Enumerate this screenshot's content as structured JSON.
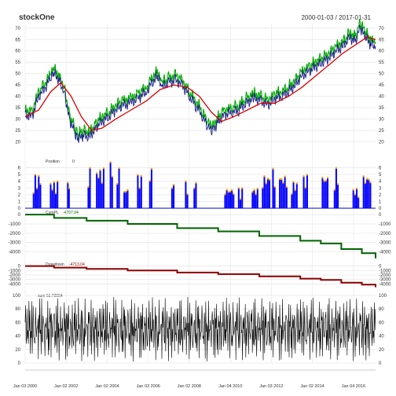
{
  "chart_data": {
    "type": "line",
    "title": "stockOne",
    "date_range": "2000-01-03 / 2017-01-31",
    "x_tick_labels": [
      "Jan 03 2000",
      "Jan 02 2002",
      "Jan 02 2004",
      "Jan 03 2006",
      "Jan 02 2008",
      "Jan 04 2010",
      "Jan 03 2012",
      "Jan 02 2014",
      "Jan 04 2016"
    ],
    "x_tick_dates": [
      "2000-01-03",
      "2002-01-02",
      "2004-01-02",
      "2006-01-03",
      "2008-01-02",
      "2010-01-04",
      "2012-01-03",
      "2014-01-02",
      "2016-01-04"
    ],
    "x_range": [
      "2000-01-03",
      "2017-01-31"
    ],
    "grid": true,
    "panels": [
      {
        "name": "price",
        "ylim": [
          15,
          72
        ],
        "y_ticks": [
          20,
          25,
          30,
          35,
          40,
          45,
          50,
          55,
          60,
          65,
          70
        ],
        "price_points": [
          [
            "2000-01-03",
            32
          ],
          [
            "2000-05-01",
            31
          ],
          [
            "2000-09-01",
            40
          ],
          [
            "2001-01-01",
            44
          ],
          [
            "2001-04-01",
            48
          ],
          [
            "2001-06-01",
            50
          ],
          [
            "2001-09-01",
            47
          ],
          [
            "2001-12-01",
            42
          ],
          [
            "2002-03-01",
            30
          ],
          [
            "2002-06-01",
            24
          ],
          [
            "2002-08-01",
            21
          ],
          [
            "2002-11-01",
            23
          ],
          [
            "2003-03-01",
            22
          ],
          [
            "2003-06-01",
            26
          ],
          [
            "2003-10-01",
            29
          ],
          [
            "2004-02-01",
            31
          ],
          [
            "2004-06-01",
            34
          ],
          [
            "2004-10-01",
            36
          ],
          [
            "2005-03-01",
            37
          ],
          [
            "2005-07-01",
            39
          ],
          [
            "2005-12-01",
            42
          ],
          [
            "2006-04-01",
            47
          ],
          [
            "2006-06-01",
            49
          ],
          [
            "2006-09-01",
            44
          ],
          [
            "2007-01-01",
            46
          ],
          [
            "2007-05-01",
            47
          ],
          [
            "2007-09-01",
            45
          ],
          [
            "2008-01-01",
            40
          ],
          [
            "2008-05-01",
            36
          ],
          [
            "2008-09-01",
            31
          ],
          [
            "2008-12-01",
            26
          ],
          [
            "2009-03-01",
            25
          ],
          [
            "2009-06-01",
            29
          ],
          [
            "2009-10-01",
            32
          ],
          [
            "2010-02-01",
            33
          ],
          [
            "2010-06-01",
            34
          ],
          [
            "2010-10-01",
            37
          ],
          [
            "2011-03-01",
            39
          ],
          [
            "2011-07-01",
            38
          ],
          [
            "2011-11-01",
            36
          ],
          [
            "2012-03-01",
            39
          ],
          [
            "2012-07-01",
            40
          ],
          [
            "2012-11-01",
            42
          ],
          [
            "2013-03-01",
            45
          ],
          [
            "2013-07-01",
            49
          ],
          [
            "2013-11-01",
            51
          ],
          [
            "2014-03-01",
            53
          ],
          [
            "2014-07-01",
            55
          ],
          [
            "2014-11-01",
            57
          ],
          [
            "2015-03-01",
            60
          ],
          [
            "2015-07-01",
            62
          ],
          [
            "2015-11-01",
            66
          ],
          [
            "2016-02-01",
            64
          ],
          [
            "2016-05-01",
            70
          ],
          [
            "2016-08-01",
            66
          ],
          [
            "2016-11-01",
            63
          ],
          [
            "2017-01-31",
            62
          ]
        ],
        "moving_average_points": [
          [
            "2000-01-03",
            31
          ],
          [
            "2000-09-01",
            34
          ],
          [
            "2001-04-01",
            42
          ],
          [
            "2001-10-01",
            46
          ],
          [
            "2002-04-01",
            40
          ],
          [
            "2002-10-01",
            31
          ],
          [
            "2003-04-01",
            25
          ],
          [
            "2003-10-01",
            26
          ],
          [
            "2004-06-01",
            30
          ],
          [
            "2005-03-01",
            34
          ],
          [
            "2005-12-01",
            38
          ],
          [
            "2006-08-01",
            43
          ],
          [
            "2007-04-01",
            45
          ],
          [
            "2007-12-01",
            44
          ],
          [
            "2008-07-01",
            40
          ],
          [
            "2009-02-01",
            33
          ],
          [
            "2009-08-01",
            29
          ],
          [
            "2010-03-01",
            31
          ],
          [
            "2010-11-01",
            34
          ],
          [
            "2011-07-01",
            37
          ],
          [
            "2012-03-01",
            37
          ],
          [
            "2012-11-01",
            40
          ],
          [
            "2013-07-01",
            44
          ],
          [
            "2014-03-01",
            49
          ],
          [
            "2014-11-01",
            54
          ],
          [
            "2015-07-01",
            59
          ],
          [
            "2016-03-01",
            63
          ],
          [
            "2016-09-01",
            66
          ],
          [
            "2017-01-31",
            65
          ]
        ],
        "series_colors": {
          "price": "#1a1a8a",
          "moving_average": "#dd0000",
          "band": "#00aa00",
          "marker": "#ffa500"
        }
      },
      {
        "name": "Position",
        "label": "Position",
        "label_value": "0",
        "ylim": [
          0,
          7
        ],
        "y_ticks": [
          0,
          1,
          2,
          3,
          4,
          5,
          6
        ],
        "blocks": [
          [
            "2000-06-01",
            "2000-11-01",
            5
          ],
          [
            "2001-04-01",
            "2001-09-01",
            4
          ],
          [
            "2002-02-01",
            "2002-03-15",
            4
          ],
          [
            "2003-02-01",
            "2003-04-01",
            6
          ],
          [
            "2003-07-01",
            "2003-12-01",
            6
          ],
          [
            "2004-03-01",
            "2004-05-01",
            7
          ],
          [
            "2004-07-01",
            "2004-09-01",
            6
          ],
          [
            "2004-11-01",
            "2005-02-01",
            3
          ],
          [
            "2005-07-01",
            "2005-10-01",
            5
          ],
          [
            "2006-02-01",
            "2006-04-01",
            6
          ],
          [
            "2007-03-01",
            "2007-05-01",
            4
          ],
          [
            "2007-11-01",
            "2008-01-01",
            4
          ],
          [
            "2008-04-01",
            "2008-06-01",
            4
          ],
          [
            "2009-10-01",
            "2010-04-01",
            3
          ],
          [
            "2010-06-01",
            "2010-09-01",
            3
          ],
          [
            "2011-02-01",
            "2011-06-01",
            3
          ],
          [
            "2011-08-01",
            "2012-01-01",
            5
          ],
          [
            "2012-02-01",
            "2012-04-01",
            6
          ],
          [
            "2012-06-01",
            "2012-11-01",
            5
          ],
          [
            "2013-01-01",
            "2013-05-01",
            4
          ],
          [
            "2013-08-01",
            "2013-11-01",
            5
          ],
          [
            "2014-07-01",
            "2014-11-01",
            5
          ],
          [
            "2015-02-01",
            "2015-05-01",
            6
          ],
          [
            "2016-01-01",
            "2016-05-01",
            3
          ],
          [
            "2016-07-01",
            "2016-12-01",
            5
          ]
        ],
        "color": "#0000ff",
        "marker_color": "#ffa500"
      },
      {
        "name": "CumPL",
        "label": "CumPL",
        "label_value": "-4707.04",
        "ylim": [
          -4800,
          100
        ],
        "y_ticks": [
          0,
          -1000,
          -2000,
          -3000,
          -4000
        ],
        "points": [
          [
            "2000-01-03",
            0
          ],
          [
            "2001-06-01",
            -350
          ],
          [
            "2003-01-01",
            -650
          ],
          [
            "2005-01-01",
            -1000
          ],
          [
            "2007-06-01",
            -1450
          ],
          [
            "2009-06-01",
            -1800
          ],
          [
            "2011-06-01",
            -2300
          ],
          [
            "2013-06-01",
            -2800
          ],
          [
            "2014-06-01",
            -3100
          ],
          [
            "2015-06-01",
            -3700
          ],
          [
            "2016-06-01",
            -4150
          ],
          [
            "2017-01-31",
            -4707
          ]
        ],
        "color": "#006400"
      },
      {
        "name": "Drawdown",
        "label": "Drawdown",
        "label_value": "-4713.04",
        "ylim": [
          -4800,
          100
        ],
        "y_ticks": [
          0,
          -1000,
          -2000,
          -3000,
          -4000
        ],
        "points": [
          [
            "2000-01-03",
            0
          ],
          [
            "2001-06-01",
            -350
          ],
          [
            "2003-01-01",
            -650
          ],
          [
            "2005-01-01",
            -1000
          ],
          [
            "2007-06-01",
            -1450
          ],
          [
            "2009-06-01",
            -1800
          ],
          [
            "2011-06-01",
            -2300
          ],
          [
            "2013-06-01",
            -2800
          ],
          [
            "2014-06-01",
            -3100
          ],
          [
            "2015-06-01",
            -3700
          ],
          [
            "2016-06-01",
            -4150
          ],
          [
            "2017-01-31",
            -4713
          ]
        ],
        "color": "#8b0000"
      },
      {
        "name": "sum",
        "label": "sum 51.72554",
        "ylim": [
          0,
          100
        ],
        "y_ticks": [
          0,
          20,
          40,
          60,
          80,
          100
        ],
        "oscillation_range": [
          0,
          100
        ],
        "color": "#000000"
      }
    ]
  }
}
